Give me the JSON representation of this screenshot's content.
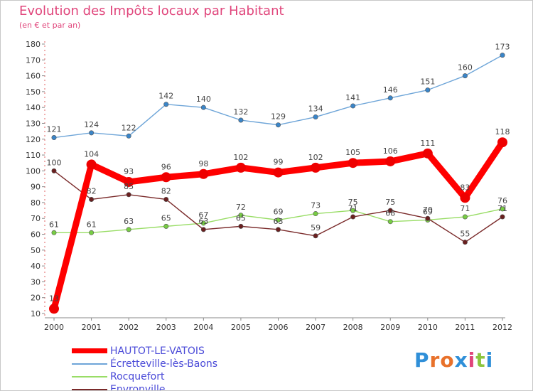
{
  "header": {
    "title": "Evolution des Impôts locaux par Habitant",
    "subtitle": "(en € et par an)"
  },
  "logo": {
    "letters": [
      "P",
      "r",
      "o",
      "x",
      "i",
      "t",
      "i"
    ],
    "colors": [
      "#2f8fd8",
      "#e8712a",
      "#e8712a",
      "#2f8fd8",
      "#e0457b",
      "#8cc63f",
      "#2f8fd8"
    ]
  },
  "chart_data": {
    "type": "line",
    "title": "Evolution des Impôts locaux par Habitant",
    "subtitle": "(en € et par an)",
    "categories": [
      "2000",
      "2001",
      "2002",
      "2003",
      "2004",
      "2005",
      "2006",
      "2007",
      "2008",
      "2009",
      "2010",
      "2011",
      "2012"
    ],
    "ylim": [
      10,
      180
    ],
    "yticks": [
      10,
      20,
      30,
      40,
      50,
      60,
      70,
      80,
      90,
      100,
      110,
      120,
      130,
      140,
      150,
      160,
      170,
      180
    ],
    "series": [
      {
        "name": "HAUTOT-LE-VATOIS",
        "color": "#ff0000",
        "marker": "#ee0000",
        "weight": "bold",
        "values": [
          13,
          104,
          93,
          96,
          98,
          102,
          99,
          102,
          105,
          106,
          111,
          83,
          118
        ],
        "labels": [
          "13",
          "104",
          "93",
          "96",
          "98",
          "102",
          "99",
          "102",
          "105",
          "106",
          "111",
          "83",
          "118"
        ]
      },
      {
        "name": "Écretteville-lès-Baons",
        "color": "#6ea5d8",
        "marker": "#3a85c8",
        "weight": "thin",
        "values": [
          121,
          124,
          122,
          142,
          140,
          132,
          129,
          134,
          141,
          146,
          151,
          160,
          173
        ],
        "labels": [
          "121",
          "124",
          "122",
          "142",
          "140",
          "132",
          "129",
          "134",
          "141",
          "146",
          "151",
          "160",
          "173"
        ]
      },
      {
        "name": "Rocquefort",
        "color": "#99dd66",
        "marker": "#77cc44",
        "weight": "thin",
        "values": [
          61,
          61,
          63,
          65,
          67,
          72,
          69,
          73,
          75,
          68,
          69,
          71,
          76
        ],
        "labels": [
          "61",
          "61",
          "63",
          "65",
          "67",
          "72",
          "69",
          "73",
          "75",
          "68",
          "69",
          "71",
          "76"
        ]
      },
      {
        "name": "Envronville",
        "color": "#7a2a2a",
        "marker": "#6a1f1f",
        "weight": "thin",
        "values": [
          100,
          82,
          85,
          82,
          63,
          65,
          63,
          59,
          71,
          75,
          70,
          55,
          71
        ],
        "labels": [
          "100",
          "82",
          "85",
          "82",
          "63",
          "65",
          "63",
          "59",
          "71",
          "75",
          "70",
          "55",
          "71"
        ]
      }
    ],
    "legend_position": "bottom-left",
    "grid": false
  }
}
